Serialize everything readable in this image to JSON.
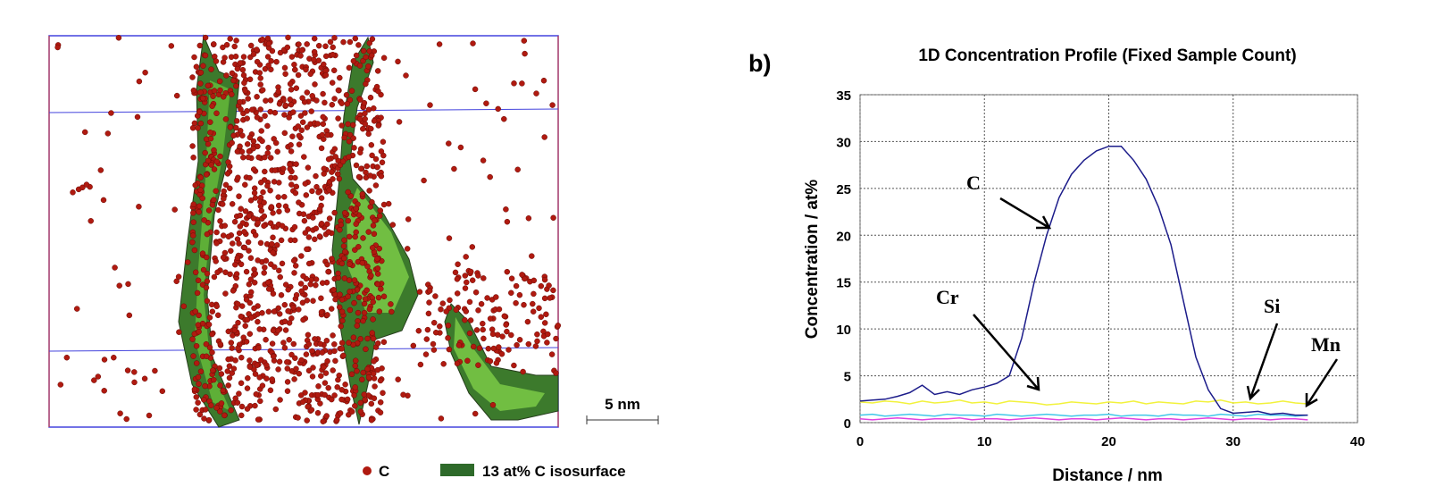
{
  "figure": {
    "panel_label": "b)",
    "scale_bar": "5 nm",
    "legend": [
      "C",
      "13 at% C isosurface"
    ]
  },
  "chart_data": {
    "type": "line",
    "title": "1D Concentration Profile (Fixed Sample Count)",
    "x_label": "Distance / nm",
    "y_label": "Concentration / at%",
    "x": [
      0,
      1,
      2,
      3,
      4,
      5,
      6,
      7,
      8,
      9,
      10,
      11,
      12,
      13,
      14,
      15,
      16,
      17,
      18,
      19,
      20,
      21,
      22,
      23,
      24,
      25,
      26,
      27,
      28,
      29,
      30,
      31,
      32,
      33,
      34,
      35,
      36
    ],
    "series": [
      {
        "name": "C",
        "color": "#1c1c8a",
        "values": [
          2.3,
          2.4,
          2.5,
          2.8,
          3.2,
          4.0,
          3.0,
          3.3,
          3.0,
          3.5,
          3.8,
          4.2,
          5.0,
          9,
          15,
          20,
          24,
          26.5,
          28,
          29,
          29.5,
          29.5,
          28,
          26,
          23,
          19,
          13,
          7,
          3.5,
          1.5,
          1.0,
          1.1,
          1.2,
          0.9,
          1.0,
          0.8,
          0.8
        ]
      },
      {
        "name": "Cr",
        "color": "#f2f23c",
        "values": [
          2.2,
          2.1,
          2.3,
          2.2,
          2.0,
          2.3,
          2.1,
          2.2,
          2.4,
          2.1,
          2.2,
          2.0,
          2.3,
          2.2,
          2.1,
          1.9,
          2.0,
          2.2,
          2.1,
          2.0,
          2.2,
          2.1,
          2.3,
          2.0,
          2.2,
          2.1,
          2.0,
          2.3,
          2.2,
          2.4,
          2.1,
          2.2,
          2.0,
          2.1,
          2.3,
          2.1,
          2.0
        ]
      },
      {
        "name": "Si",
        "color": "#40c8e8",
        "values": [
          0.8,
          0.9,
          0.7,
          0.8,
          0.9,
          0.8,
          0.7,
          0.9,
          0.8,
          0.8,
          0.7,
          0.9,
          0.8,
          0.7,
          0.8,
          0.9,
          0.8,
          0.7,
          0.8,
          0.8,
          0.9,
          0.7,
          0.8,
          0.8,
          0.7,
          0.9,
          0.8,
          0.8,
          0.7,
          0.9,
          0.8,
          0.7,
          0.9,
          0.8,
          0.8,
          0.7,
          0.8
        ]
      },
      {
        "name": "Mn",
        "color": "#e040e0",
        "values": [
          0.4,
          0.3,
          0.4,
          0.5,
          0.4,
          0.3,
          0.4,
          0.4,
          0.5,
          0.3,
          0.4,
          0.4,
          0.3,
          0.4,
          0.5,
          0.4,
          0.3,
          0.4,
          0.4,
          0.3,
          0.4,
          0.5,
          0.4,
          0.3,
          0.4,
          0.4,
          0.3,
          0.4,
          0.5,
          0.4,
          0.3,
          0.4,
          0.4,
          0.3,
          0.4,
          0.4,
          0.3
        ]
      }
    ],
    "xlim": [
      0,
      40
    ],
    "xticks": [
      0,
      10,
      20,
      30,
      40
    ],
    "ylim": [
      0,
      35
    ],
    "yticks": [
      0,
      5,
      10,
      15,
      20,
      25,
      30,
      35
    ],
    "grid": true
  }
}
